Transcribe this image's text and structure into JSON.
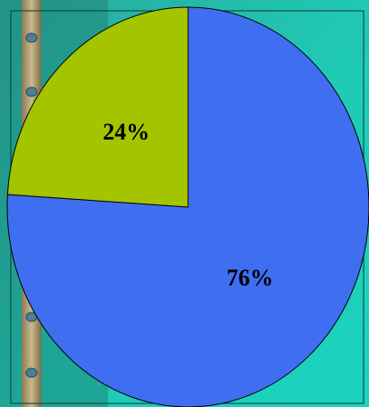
{
  "chart_data": {
    "type": "pie",
    "values": [
      76,
      24
    ],
    "value_labels": [
      "76%",
      "24%"
    ],
    "colors": [
      "#3f6ff0",
      "#a4c400"
    ]
  }
}
